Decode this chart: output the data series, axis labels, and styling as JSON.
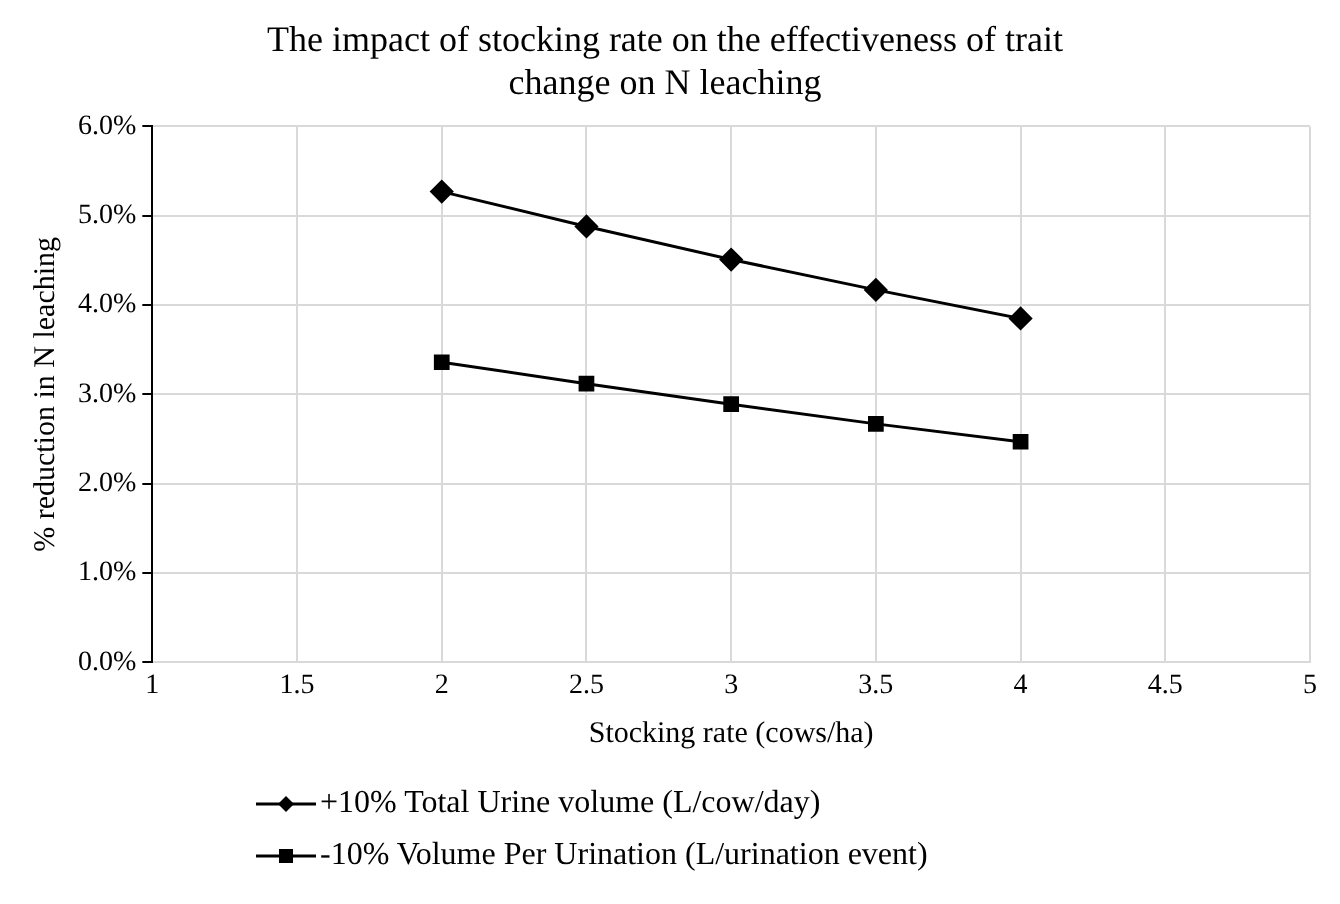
{
  "chart_data": {
    "type": "line",
    "title": "The impact of stocking rate on the effectiveness of trait change on N leaching",
    "xlabel": "Stocking rate (cows/ha)",
    "ylabel": "% reduction in N leaching",
    "x": [
      2,
      2.5,
      3,
      3.5,
      4
    ],
    "series": [
      {
        "name": "+10% Total Urine volume (L/cow/day)",
        "color": "#000000",
        "marker": "diamond",
        "values": [
          5.27,
          4.88,
          4.51,
          4.17,
          3.85
        ]
      },
      {
        "name": "-10% Volume Per Urination (L/urination event)",
        "color": "#000000",
        "marker": "square",
        "values": [
          3.36,
          3.12,
          2.89,
          2.67,
          2.47
        ]
      }
    ],
    "xlim": [
      1,
      5
    ],
    "xticks": [
      1,
      1.5,
      2,
      2.5,
      3,
      3.5,
      4,
      4.5,
      5
    ],
    "ylim": [
      0,
      6
    ],
    "yticks": [
      {
        "value": 0,
        "label": "0.0%"
      },
      {
        "value": 1,
        "label": "1.0%"
      },
      {
        "value": 2,
        "label": "2.0%"
      },
      {
        "value": 3,
        "label": "3.0%"
      },
      {
        "value": 4,
        "label": "4.0%"
      },
      {
        "value": 5,
        "label": "5.0%"
      },
      {
        "value": 6,
        "label": "6.0%"
      }
    ],
    "grid": true,
    "legend": "bottom",
    "line_style": "solid"
  }
}
